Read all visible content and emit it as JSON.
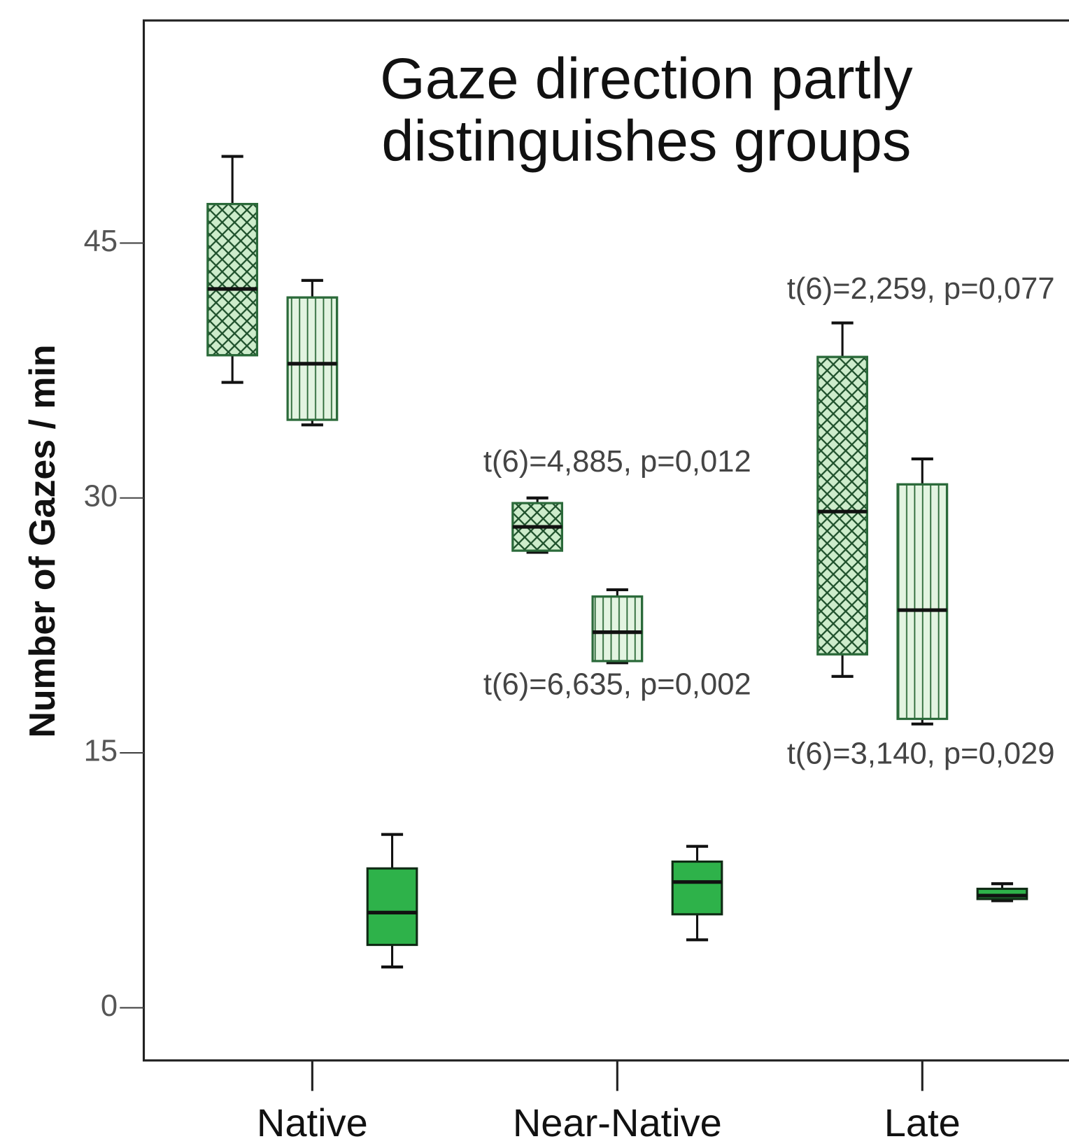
{
  "chart_data": {
    "type": "boxplot",
    "title": [
      "Gaze direction partly",
      "distinguishes groups"
    ],
    "y_label": "Number of Gazes / min",
    "categories": [
      "Native",
      "Near-Native",
      "Late"
    ],
    "ylim": [
      -3.1,
      58.1
    ],
    "yticks": [
      0,
      15,
      30,
      45
    ],
    "series": [
      {
        "pattern": "crosshatch",
        "color": "#cdeccb",
        "boxes": [
          {
            "min": 36.8,
            "q1": 38.4,
            "median": 42.3,
            "q3": 47.3,
            "max": 50.1
          },
          {
            "min": 26.8,
            "q1": 26.9,
            "median": 28.3,
            "q3": 29.7,
            "max": 30.0
          },
          {
            "min": 19.5,
            "q1": 20.8,
            "median": 29.2,
            "q3": 38.3,
            "max": 40.3
          }
        ]
      },
      {
        "pattern": "vertical",
        "color": "#e3f4e1",
        "boxes": [
          {
            "min": 34.3,
            "q1": 34.6,
            "median": 37.9,
            "q3": 41.8,
            "max": 42.8
          },
          {
            "min": 20.3,
            "q1": 20.4,
            "median": 22.1,
            "q3": 24.2,
            "max": 24.6
          },
          {
            "min": 16.7,
            "q1": 17.0,
            "median": 23.4,
            "q3": 30.8,
            "max": 32.3
          }
        ]
      },
      {
        "pattern": "solid",
        "color": "#2eb24a",
        "boxes": [
          {
            "min": 2.4,
            "q1": 3.7,
            "median": 5.6,
            "q3": 8.2,
            "max": 10.2
          },
          {
            "min": 4.0,
            "q1": 5.5,
            "median": 7.4,
            "q3": 8.6,
            "max": 9.5
          },
          {
            "min": 6.3,
            "q1": 6.4,
            "median": 6.6,
            "q3": 7.0,
            "max": 7.3
          }
        ]
      }
    ],
    "annotations": [
      "t(6)=4,885, p=0,012",
      "t(6)=6,635, p=0,002",
      "t(6)=2,259, p=0,077",
      "t(6)=3,140, p=0,029"
    ]
  }
}
